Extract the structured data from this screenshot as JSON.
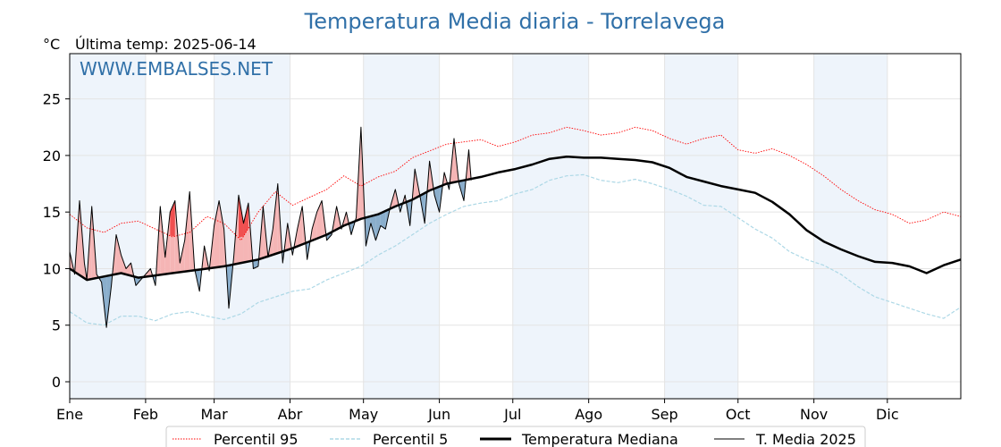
{
  "chart_data": {
    "type": "line",
    "title": "Temperatura Media diaria - Torrelavega",
    "unit_label": "°C",
    "subtitle": "Última temp: 2025-06-14",
    "watermark": "WWW.EMBALSES.NET",
    "ylim": [
      -1.5,
      29
    ],
    "yticks": [
      0,
      5,
      10,
      15,
      20,
      25
    ],
    "xlim": [
      1,
      365
    ],
    "months": [
      {
        "label": "Ene",
        "day": 1
      },
      {
        "label": "Feb",
        "day": 32
      },
      {
        "label": "Mar",
        "day": 60
      },
      {
        "label": "Abr",
        "day": 91
      },
      {
        "label": "May",
        "day": 121
      },
      {
        "label": "Jun",
        "day": 152
      },
      {
        "label": "Jul",
        "day": 182
      },
      {
        "label": "Ago",
        "day": 213
      },
      {
        "label": "Sep",
        "day": 244
      },
      {
        "label": "Oct",
        "day": 274
      },
      {
        "label": "Nov",
        "day": 305
      },
      {
        "label": "Dic",
        "day": 335
      }
    ],
    "grid": true,
    "legend_position": "bottom",
    "series": [
      {
        "name": "Percentil 95",
        "color": "#ff0000",
        "style": "dotted",
        "x": [
          1,
          8,
          15,
          22,
          29,
          36,
          43,
          50,
          57,
          64,
          71,
          78,
          85,
          92,
          99,
          106,
          113,
          120,
          127,
          134,
          141,
          148,
          155,
          162,
          169,
          176,
          183,
          190,
          197,
          204,
          211,
          218,
          225,
          232,
          239,
          246,
          253,
          260,
          267,
          274,
          281,
          288,
          295,
          302,
          309,
          316,
          323,
          330,
          337,
          344,
          351,
          358,
          365
        ],
        "values": [
          14.8,
          13.6,
          13.2,
          14.0,
          14.2,
          13.5,
          12.8,
          13.2,
          14.6,
          14.0,
          12.5,
          15.0,
          16.8,
          15.6,
          16.3,
          17.0,
          18.2,
          17.3,
          18.1,
          18.6,
          19.8,
          20.4,
          21.0,
          21.2,
          21.4,
          20.8,
          21.2,
          21.8,
          22.0,
          22.5,
          22.2,
          21.8,
          22.0,
          22.5,
          22.2,
          21.5,
          21.0,
          21.5,
          21.8,
          20.5,
          20.2,
          20.6,
          20.0,
          19.2,
          18.2,
          17.0,
          16.0,
          15.2,
          14.8,
          14.0,
          14.3,
          15.0,
          14.6
        ]
      },
      {
        "name": "Percentil 5",
        "color": "#add8e6",
        "style": "dashed",
        "x": [
          1,
          8,
          15,
          22,
          29,
          36,
          43,
          50,
          57,
          64,
          71,
          78,
          85,
          92,
          99,
          106,
          113,
          120,
          127,
          134,
          141,
          148,
          155,
          162,
          169,
          176,
          183,
          190,
          197,
          204,
          211,
          218,
          225,
          232,
          239,
          246,
          253,
          260,
          267,
          274,
          281,
          288,
          295,
          302,
          309,
          316,
          323,
          330,
          337,
          344,
          351,
          358,
          365
        ],
        "values": [
          6.2,
          5.2,
          5.0,
          5.8,
          5.8,
          5.4,
          6.0,
          6.2,
          5.8,
          5.5,
          6.0,
          7.0,
          7.5,
          8.0,
          8.2,
          9.0,
          9.6,
          10.2,
          11.2,
          12.0,
          13.0,
          14.0,
          14.8,
          15.5,
          15.8,
          16.0,
          16.6,
          17.0,
          17.8,
          18.2,
          18.3,
          17.8,
          17.6,
          17.9,
          17.5,
          17.0,
          16.4,
          15.6,
          15.5,
          14.5,
          13.5,
          12.7,
          11.5,
          10.8,
          10.3,
          9.5,
          8.4,
          7.5,
          7.0,
          6.5,
          6.0,
          5.6,
          6.6
        ]
      },
      {
        "name": "Temperatura Mediana",
        "color": "#000000",
        "style": "solid-thick",
        "x": [
          1,
          8,
          15,
          22,
          29,
          36,
          43,
          50,
          57,
          64,
          71,
          78,
          85,
          92,
          99,
          106,
          113,
          120,
          127,
          134,
          141,
          148,
          155,
          162,
          169,
          176,
          183,
          190,
          197,
          204,
          211,
          218,
          225,
          232,
          239,
          246,
          253,
          260,
          267,
          274,
          281,
          288,
          295,
          302,
          309,
          316,
          323,
          330,
          337,
          344,
          351,
          358,
          365
        ],
        "values": [
          10.0,
          9.0,
          9.3,
          9.6,
          9.2,
          9.4,
          9.6,
          9.8,
          10.0,
          10.2,
          10.5,
          10.8,
          11.3,
          11.8,
          12.4,
          13.0,
          13.8,
          14.4,
          14.8,
          15.5,
          16.1,
          16.9,
          17.5,
          17.8,
          18.1,
          18.5,
          18.8,
          19.2,
          19.7,
          19.9,
          19.8,
          19.8,
          19.7,
          19.6,
          19.4,
          18.9,
          18.1,
          17.7,
          17.3,
          17.0,
          16.7,
          15.9,
          14.8,
          13.4,
          12.4,
          11.7,
          11.1,
          10.6,
          10.5,
          10.2,
          9.6,
          10.3,
          10.8
        ]
      },
      {
        "name": "T. Media 2025",
        "color": "#000000",
        "style": "solid-thin",
        "x": [
          1,
          3,
          5,
          7,
          8,
          10,
          12,
          14,
          16,
          18,
          20,
          22,
          24,
          26,
          28,
          30,
          32,
          34,
          36,
          38,
          40,
          42,
          44,
          46,
          48,
          50,
          52,
          54,
          56,
          58,
          60,
          62,
          64,
          66,
          68,
          70,
          72,
          74,
          76,
          78,
          80,
          82,
          84,
          86,
          88,
          90,
          92,
          94,
          96,
          98,
          100,
          102,
          104,
          106,
          108,
          110,
          112,
          114,
          116,
          118,
          120,
          122,
          124,
          126,
          128,
          130,
          132,
          134,
          136,
          138,
          140,
          142,
          144,
          146,
          148,
          150,
          152,
          154,
          156,
          158,
          160,
          162,
          164,
          165
        ],
        "values": [
          11.5,
          9.5,
          16.0,
          10.5,
          9.0,
          15.5,
          9.5,
          8.8,
          4.8,
          8.5,
          13.0,
          11.2,
          10.0,
          10.5,
          8.5,
          9.0,
          9.5,
          10.0,
          8.5,
          15.5,
          11.0,
          15.0,
          16.0,
          10.5,
          12.5,
          16.8,
          10.0,
          8.0,
          12.0,
          9.8,
          13.8,
          16.0,
          13.5,
          6.5,
          11.0,
          16.5,
          14.0,
          15.8,
          10.0,
          10.2,
          15.5,
          11.0,
          13.5,
          17.5,
          10.5,
          14.0,
          11.2,
          13.5,
          15.5,
          10.8,
          13.5,
          15.0,
          16.0,
          12.5,
          13.0,
          15.5,
          13.5,
          15.0,
          13.0,
          14.5,
          22.5,
          12.0,
          14.0,
          12.5,
          13.8,
          13.5,
          15.5,
          17.0,
          15.0,
          16.5,
          13.8,
          18.8,
          16.5,
          14.0,
          19.5,
          16.5,
          15.0,
          18.5,
          17.0,
          21.5,
          17.5,
          16.0,
          20.5,
          17.8
        ]
      }
    ]
  },
  "legend": {
    "p95": "Percentil 95",
    "p5": "Percentil 5",
    "median": "Temperatura Mediana",
    "current": "T. Media 2025"
  },
  "colors": {
    "title": "#3070a8",
    "watermark": "#3070a8",
    "band": "#eef4fb",
    "above_fill": "#f5b5b5",
    "above_strong": "#f05050",
    "below_fill": "#8aaecc",
    "below_strong": "#2a6296"
  }
}
